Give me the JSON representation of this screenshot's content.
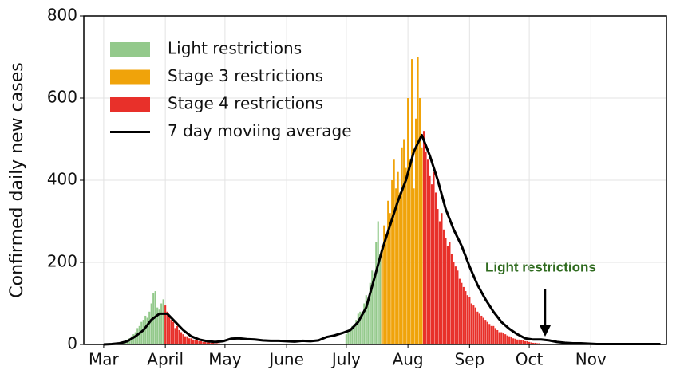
{
  "chart_data": {
    "type": "bar",
    "ylabel": "Confirmed daily new cases",
    "annotation": "Light restrictions",
    "xlim": [
      -9,
      284
    ],
    "ylim": [
      0,
      800
    ],
    "xticks": [
      {
        "value": 1,
        "label": "Mar"
      },
      {
        "value": 32,
        "label": "April"
      },
      {
        "value": 62,
        "label": "May"
      },
      {
        "value": 93,
        "label": "June"
      },
      {
        "value": 123,
        "label": "July"
      },
      {
        "value": 154,
        "label": "Aug"
      },
      {
        "value": 185,
        "label": "Sep"
      },
      {
        "value": 215,
        "label": "Oct"
      },
      {
        "value": 246,
        "label": "Nov"
      }
    ],
    "yticks": [
      0,
      200,
      400,
      600,
      800
    ],
    "grid": true,
    "legend": "upper left",
    "series": [
      {
        "name": "Light restrictions",
        "color": "#93c98b",
        "x": [
          5,
          6,
          7,
          8,
          9,
          10,
          11,
          12,
          13,
          14,
          15,
          16,
          17,
          18,
          19,
          20,
          21,
          22,
          23,
          24,
          25,
          26,
          27,
          28,
          29,
          30,
          31,
          123,
          124,
          125,
          126,
          127,
          128,
          129,
          130,
          131,
          132,
          133,
          134,
          135,
          136,
          137,
          138,
          139,
          140
        ],
        "values": [
          1,
          1,
          2,
          2,
          3,
          4,
          6,
          8,
          12,
          15,
          20,
          25,
          30,
          40,
          45,
          55,
          60,
          70,
          65,
          80,
          100,
          125,
          130,
          90,
          85,
          100,
          110,
          25,
          30,
          40,
          45,
          50,
          60,
          75,
          80,
          70,
          100,
          120,
          110,
          150,
          180,
          170,
          250,
          300,
          220
        ]
      },
      {
        "name": "Stage 3 restrictions",
        "color": "#f0a30a",
        "x": [
          141,
          142,
          143,
          144,
          145,
          146,
          147,
          148,
          149,
          150,
          151,
          152,
          153,
          154,
          155,
          156,
          157,
          158,
          159,
          160,
          161
        ],
        "values": [
          240,
          290,
          270,
          350,
          320,
          400,
          450,
          380,
          420,
          370,
          480,
          500,
          430,
          600,
          450,
          695,
          380,
          550,
          700,
          600,
          480
        ]
      },
      {
        "name": "Stage 4 restrictions",
        "color": "#e8302a",
        "x": [
          32,
          33,
          34,
          35,
          36,
          37,
          38,
          39,
          40,
          41,
          42,
          43,
          44,
          45,
          46,
          47,
          48,
          49,
          50,
          51,
          52,
          53,
          54,
          55,
          56,
          57,
          58,
          59,
          60,
          162,
          163,
          164,
          165,
          166,
          167,
          168,
          169,
          170,
          171,
          172,
          173,
          174,
          175,
          176,
          177,
          178,
          179,
          180,
          181,
          182,
          183,
          184,
          185,
          186,
          187,
          188,
          189,
          190,
          191,
          192,
          193,
          194,
          195,
          196,
          197,
          198,
          199,
          200,
          201,
          202,
          203,
          204,
          205,
          206,
          207,
          208,
          209,
          210,
          211,
          212,
          213,
          214,
          215,
          216,
          217,
          218,
          219,
          220,
          221,
          222,
          223,
          224,
          225,
          226,
          227,
          228,
          229,
          230,
          231,
          232,
          233,
          234,
          235,
          236,
          237,
          238,
          239,
          240
        ],
        "values": [
          95,
          80,
          70,
          60,
          55,
          40,
          45,
          35,
          30,
          25,
          20,
          20,
          15,
          15,
          12,
          10,
          10,
          8,
          8,
          6,
          6,
          5,
          5,
          4,
          4,
          3,
          3,
          3,
          2,
          520,
          470,
          450,
          410,
          390,
          420,
          370,
          330,
          300,
          320,
          280,
          260,
          240,
          250,
          220,
          200,
          190,
          180,
          160,
          150,
          140,
          130,
          120,
          115,
          100,
          95,
          90,
          80,
          75,
          70,
          65,
          60,
          55,
          50,
          45,
          45,
          40,
          35,
          30,
          30,
          28,
          25,
          22,
          20,
          18,
          15,
          14,
          12,
          12,
          10,
          10,
          8,
          8,
          6,
          5,
          4,
          4,
          3,
          3,
          2,
          2,
          2,
          2,
          1,
          1,
          1,
          1,
          1,
          1,
          1,
          1,
          1,
          1,
          1,
          0,
          1,
          0,
          1,
          0
        ]
      },
      {
        "name": "7 day moviing average",
        "color": "#000000",
        "type": "line",
        "x": [
          1,
          5,
          9,
          13,
          17,
          21,
          25,
          29,
          33,
          37,
          41,
          45,
          49,
          53,
          57,
          61,
          65,
          69,
          73,
          77,
          81,
          85,
          89,
          93,
          97,
          101,
          105,
          109,
          113,
          117,
          121,
          125,
          129,
          133,
          137,
          141,
          145,
          149,
          153,
          157,
          161,
          165,
          169,
          173,
          177,
          181,
          185,
          189,
          193,
          197,
          201,
          205,
          209,
          213,
          217,
          221,
          225,
          229,
          233,
          237,
          241,
          245,
          249,
          253,
          257,
          261,
          265,
          269,
          273,
          277,
          281
        ],
        "values": [
          0,
          1,
          3,
          8,
          20,
          35,
          60,
          75,
          75,
          55,
          35,
          20,
          12,
          8,
          6,
          8,
          14,
          15,
          13,
          12,
          10,
          9,
          9,
          8,
          7,
          9,
          8,
          10,
          18,
          22,
          28,
          35,
          55,
          90,
          160,
          230,
          290,
          350,
          400,
          470,
          510,
          460,
          400,
          330,
          280,
          240,
          190,
          145,
          110,
          80,
          55,
          38,
          25,
          15,
          12,
          12,
          10,
          6,
          4,
          3,
          3,
          2,
          1,
          1,
          1,
          1,
          1,
          1,
          1,
          1,
          1
        ]
      }
    ]
  }
}
